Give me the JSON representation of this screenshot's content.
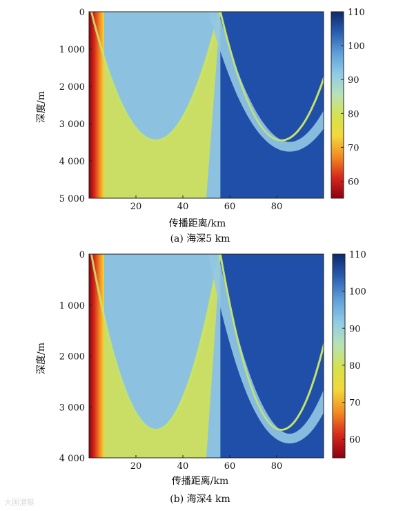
{
  "colormap": {
    "stops": [
      "#8b0010",
      "#d7281c",
      "#f28a22",
      "#f2d83a",
      "#d5e24e",
      "#b7e2b8",
      "#8fcbe6",
      "#5f9fd8",
      "#2a5cb0",
      "#0d2a6b"
    ],
    "background": "#1f4fa8",
    "pale_band": "#92c8e3",
    "beam": "#c7e36a",
    "source_red": "#c7201a"
  },
  "chart_data": [
    {
      "type": "heatmap",
      "panel": "a",
      "caption": "(a) 海深5 km",
      "xlabel": "传播距离/km",
      "ylabel": "深度/m",
      "xlim": [
        0,
        100
      ],
      "ylim": [
        5000,
        0
      ],
      "xticks": [
        20,
        40,
        60,
        80
      ],
      "xtick_labels": [
        "20",
        "40",
        "60",
        "80"
      ],
      "yticks": [
        0,
        1000,
        2000,
        3000,
        4000,
        5000
      ],
      "ytick_labels": [
        "0",
        "1 000",
        "2 000",
        "3 000",
        "4 000",
        "5 000"
      ],
      "colorbar": {
        "min": 55,
        "max": 110,
        "ticks": [
          60,
          70,
          80,
          90,
          100,
          110
        ],
        "tick_labels": [
          "60",
          "70",
          "80",
          "90",
          "100",
          "110"
        ]
      },
      "caustic_vertices_km": [
        28,
        56,
        82
      ],
      "vertex_depths_m": [
        3450,
        0,
        3450
      ],
      "convergence_range_km": 56
    },
    {
      "type": "heatmap",
      "panel": "b",
      "caption": "(b) 海深4 km",
      "xlabel": "传播距离/km",
      "ylabel": "深度/m",
      "xlim": [
        0,
        100
      ],
      "ylim": [
        4000,
        0
      ],
      "xticks": [
        20,
        40,
        60,
        80
      ],
      "xtick_labels": [
        "20",
        "40",
        "60",
        "80"
      ],
      "yticks": [
        0,
        1000,
        2000,
        3000,
        4000
      ],
      "ytick_labels": [
        "0",
        "1 000",
        "2 000",
        "3 000",
        "4 000"
      ],
      "colorbar": {
        "min": 55,
        "max": 110,
        "ticks": [
          60,
          70,
          80,
          90,
          100,
          110
        ],
        "tick_labels": [
          "60",
          "70",
          "80",
          "90",
          "100",
          "110"
        ]
      },
      "caustic_vertices_km": [
        28,
        56,
        82
      ],
      "vertex_depths_m": [
        3450,
        0,
        3450
      ],
      "convergence_range_km": 56
    }
  ],
  "watermark": "大国潜艇"
}
